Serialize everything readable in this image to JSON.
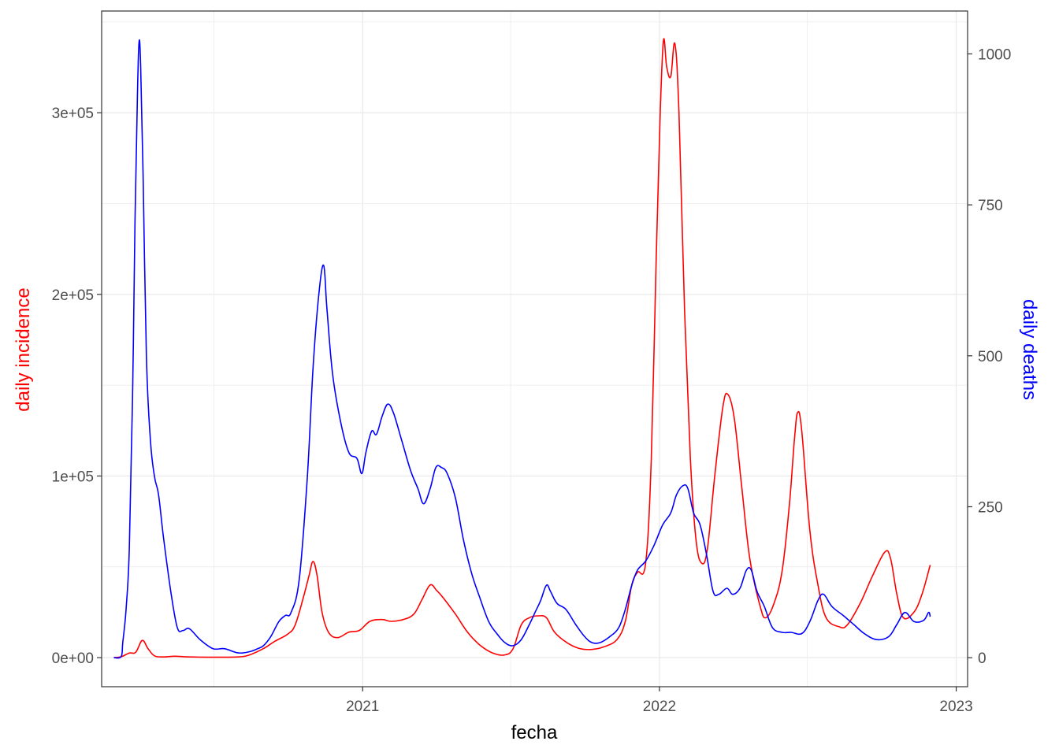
{
  "chart_data": {
    "type": "line",
    "title": "",
    "xlabel": "fecha",
    "ylabel_left": "daily incidence",
    "ylabel_right": "daily deaths",
    "grid": true,
    "x_ticks": [
      "2021",
      "2022",
      "2023"
    ],
    "x_range": [
      "2020-02-15",
      "2023-01-15"
    ],
    "y_left_ticks": [
      "0e+00",
      "1e+05",
      "2e+05",
      "3e+05"
    ],
    "y_left_range": [
      -16000,
      356000
    ],
    "y_right_ticks": [
      "0",
      "250",
      "500",
      "750",
      "1000"
    ],
    "y_right_range": [
      -48,
      1071
    ],
    "colors": {
      "incidence": "#ff0000",
      "deaths": "#0000ff",
      "grid": "#ebebeb",
      "panel_border": "#333333"
    },
    "series": [
      {
        "name": "daily incidence",
        "axis": "left",
        "color": "#ff0000",
        "points": [
          [
            "2020-03-01",
            0
          ],
          [
            "2020-03-10",
            500
          ],
          [
            "2020-03-20",
            2500
          ],
          [
            "2020-03-28",
            3000
          ],
          [
            "2020-04-05",
            9500
          ],
          [
            "2020-04-12",
            5000
          ],
          [
            "2020-04-20",
            1000
          ],
          [
            "2020-05-01",
            400
          ],
          [
            "2020-05-15",
            800
          ],
          [
            "2020-06-01",
            400
          ],
          [
            "2020-07-01",
            200
          ],
          [
            "2020-08-01",
            400
          ],
          [
            "2020-08-15",
            1500
          ],
          [
            "2020-09-01",
            5000
          ],
          [
            "2020-09-15",
            9000
          ],
          [
            "2020-10-01",
            13000
          ],
          [
            "2020-10-10",
            18000
          ],
          [
            "2020-10-20",
            33000
          ],
          [
            "2020-10-27",
            45000
          ],
          [
            "2020-11-01",
            53000
          ],
          [
            "2020-11-06",
            45000
          ],
          [
            "2020-11-12",
            25000
          ],
          [
            "2020-11-20",
            14000
          ],
          [
            "2020-12-01",
            11000
          ],
          [
            "2020-12-15",
            14000
          ],
          [
            "2020-12-28",
            15000
          ],
          [
            "2021-01-10",
            20000
          ],
          [
            "2021-01-25",
            21000
          ],
          [
            "2021-02-05",
            20000
          ],
          [
            "2021-02-20",
            21000
          ],
          [
            "2021-03-05",
            24000
          ],
          [
            "2021-03-15",
            32000
          ],
          [
            "2021-03-25",
            40000
          ],
          [
            "2021-04-02",
            37000
          ],
          [
            "2021-04-10",
            33000
          ],
          [
            "2021-04-25",
            24000
          ],
          [
            "2021-05-10",
            14000
          ],
          [
            "2021-05-25",
            7000
          ],
          [
            "2021-06-10",
            2500
          ],
          [
            "2021-06-25",
            1500
          ],
          [
            "2021-07-05",
            5000
          ],
          [
            "2021-07-15",
            18000
          ],
          [
            "2021-07-25",
            22000
          ],
          [
            "2021-08-05",
            23000
          ],
          [
            "2021-08-15",
            22000
          ],
          [
            "2021-08-25",
            14000
          ],
          [
            "2021-09-10",
            8000
          ],
          [
            "2021-09-25",
            5000
          ],
          [
            "2021-10-10",
            4500
          ],
          [
            "2021-10-25",
            6000
          ],
          [
            "2021-11-10",
            10000
          ],
          [
            "2021-11-20",
            20000
          ],
          [
            "2021-11-28",
            40000
          ],
          [
            "2021-12-05",
            47000
          ],
          [
            "2021-12-15",
            52000
          ],
          [
            "2021-12-22",
            110000
          ],
          [
            "2021-12-28",
            220000
          ],
          [
            "2022-01-02",
            300000
          ],
          [
            "2022-01-06",
            340000
          ],
          [
            "2022-01-10",
            325000
          ],
          [
            "2022-01-15",
            320000
          ],
          [
            "2022-01-20",
            338000
          ],
          [
            "2022-01-25",
            300000
          ],
          [
            "2022-02-01",
            190000
          ],
          [
            "2022-02-08",
            110000
          ],
          [
            "2022-02-15",
            65000
          ],
          [
            "2022-02-22",
            52000
          ],
          [
            "2022-03-01",
            60000
          ],
          [
            "2022-03-10",
            100000
          ],
          [
            "2022-03-20",
            138000
          ],
          [
            "2022-03-26",
            145000
          ],
          [
            "2022-04-03",
            132000
          ],
          [
            "2022-04-12",
            95000
          ],
          [
            "2022-04-22",
            55000
          ],
          [
            "2022-05-05",
            28000
          ],
          [
            "2022-05-12",
            22000
          ],
          [
            "2022-05-22",
            30000
          ],
          [
            "2022-06-01",
            48000
          ],
          [
            "2022-06-10",
            85000
          ],
          [
            "2022-06-16",
            120000
          ],
          [
            "2022-06-20",
            135000
          ],
          [
            "2022-06-25",
            125000
          ],
          [
            "2022-07-05",
            70000
          ],
          [
            "2022-07-15",
            40000
          ],
          [
            "2022-07-25",
            22000
          ],
          [
            "2022-08-10",
            17000
          ],
          [
            "2022-08-20",
            18000
          ],
          [
            "2022-09-05",
            30000
          ],
          [
            "2022-09-20",
            45000
          ],
          [
            "2022-10-05",
            58000
          ],
          [
            "2022-10-12",
            55000
          ],
          [
            "2022-10-20",
            35000
          ],
          [
            "2022-10-28",
            22000
          ],
          [
            "2022-11-10",
            25000
          ],
          [
            "2022-11-20",
            35000
          ],
          [
            "2022-11-30",
            51000
          ]
        ]
      },
      {
        "name": "daily deaths",
        "axis": "right",
        "color": "#0000ff",
        "points": [
          [
            "2020-03-01",
            0
          ],
          [
            "2020-03-10",
            2
          ],
          [
            "2020-03-12",
            25
          ],
          [
            "2020-03-16",
            80
          ],
          [
            "2020-03-20",
            180
          ],
          [
            "2020-03-24",
            430
          ],
          [
            "2020-03-27",
            720
          ],
          [
            "2020-03-30",
            930
          ],
          [
            "2020-04-01",
            1020
          ],
          [
            "2020-04-03",
            980
          ],
          [
            "2020-04-06",
            800
          ],
          [
            "2020-04-10",
            500
          ],
          [
            "2020-04-15",
            360
          ],
          [
            "2020-04-20",
            300
          ],
          [
            "2020-04-25",
            270
          ],
          [
            "2020-05-01",
            200
          ],
          [
            "2020-05-10",
            110
          ],
          [
            "2020-05-18",
            50
          ],
          [
            "2020-05-25",
            45
          ],
          [
            "2020-06-02",
            48
          ],
          [
            "2020-06-15",
            30
          ],
          [
            "2020-07-01",
            15
          ],
          [
            "2020-07-15",
            15
          ],
          [
            "2020-08-01",
            8
          ],
          [
            "2020-08-15",
            10
          ],
          [
            "2020-08-25",
            15
          ],
          [
            "2020-09-01",
            20
          ],
          [
            "2020-09-10",
            35
          ],
          [
            "2020-09-20",
            60
          ],
          [
            "2020-09-28",
            70
          ],
          [
            "2020-10-05",
            75
          ],
          [
            "2020-10-15",
            130
          ],
          [
            "2020-10-25",
            300
          ],
          [
            "2020-11-01",
            480
          ],
          [
            "2020-11-08",
            600
          ],
          [
            "2020-11-14",
            650
          ],
          [
            "2020-11-18",
            580
          ],
          [
            "2020-11-25",
            470
          ],
          [
            "2020-12-05",
            390
          ],
          [
            "2020-12-15",
            340
          ],
          [
            "2020-12-25",
            330
          ],
          [
            "2020-12-31",
            305
          ],
          [
            "2021-01-05",
            340
          ],
          [
            "2021-01-12",
            375
          ],
          [
            "2021-01-18",
            370
          ],
          [
            "2021-01-25",
            400
          ],
          [
            "2021-02-01",
            420
          ],
          [
            "2021-02-08",
            405
          ],
          [
            "2021-02-18",
            360
          ],
          [
            "2021-03-01",
            310
          ],
          [
            "2021-03-10",
            280
          ],
          [
            "2021-03-17",
            255
          ],
          [
            "2021-03-25",
            280
          ],
          [
            "2021-04-01",
            315
          ],
          [
            "2021-04-08",
            315
          ],
          [
            "2021-04-15",
            305
          ],
          [
            "2021-04-25",
            265
          ],
          [
            "2021-05-05",
            195
          ],
          [
            "2021-05-15",
            140
          ],
          [
            "2021-05-25",
            100
          ],
          [
            "2021-06-05",
            60
          ],
          [
            "2021-06-15",
            40
          ],
          [
            "2021-06-25",
            25
          ],
          [
            "2021-07-05",
            20
          ],
          [
            "2021-07-15",
            30
          ],
          [
            "2021-07-25",
            55
          ],
          [
            "2021-08-01",
            75
          ],
          [
            "2021-08-08",
            95
          ],
          [
            "2021-08-15",
            120
          ],
          [
            "2021-08-20",
            110
          ],
          [
            "2021-08-28",
            90
          ],
          [
            "2021-09-08",
            80
          ],
          [
            "2021-09-20",
            55
          ],
          [
            "2021-10-01",
            35
          ],
          [
            "2021-10-10",
            25
          ],
          [
            "2021-10-20",
            25
          ],
          [
            "2021-11-01",
            35
          ],
          [
            "2021-11-12",
            50
          ],
          [
            "2021-11-20",
            80
          ],
          [
            "2021-11-28",
            120
          ],
          [
            "2021-12-05",
            145
          ],
          [
            "2021-12-15",
            160
          ],
          [
            "2021-12-25",
            185
          ],
          [
            "2022-01-05",
            220
          ],
          [
            "2022-01-15",
            240
          ],
          [
            "2022-01-22",
            270
          ],
          [
            "2022-01-30",
            285
          ],
          [
            "2022-02-05",
            280
          ],
          [
            "2022-02-12",
            240
          ],
          [
            "2022-02-20",
            220
          ],
          [
            "2022-02-28",
            170
          ],
          [
            "2022-03-08",
            110
          ],
          [
            "2022-03-15",
            105
          ],
          [
            "2022-03-25",
            115
          ],
          [
            "2022-04-01",
            105
          ],
          [
            "2022-04-10",
            115
          ],
          [
            "2022-04-18",
            145
          ],
          [
            "2022-04-24",
            145
          ],
          [
            "2022-05-01",
            110
          ],
          [
            "2022-05-10",
            85
          ],
          [
            "2022-05-20",
            50
          ],
          [
            "2022-06-01",
            42
          ],
          [
            "2022-06-12",
            42
          ],
          [
            "2022-06-25",
            40
          ],
          [
            "2022-07-05",
            60
          ],
          [
            "2022-07-15",
            95
          ],
          [
            "2022-07-22",
            105
          ],
          [
            "2022-08-01",
            85
          ],
          [
            "2022-08-15",
            70
          ],
          [
            "2022-08-28",
            55
          ],
          [
            "2022-09-10",
            40
          ],
          [
            "2022-09-25",
            30
          ],
          [
            "2022-10-10",
            35
          ],
          [
            "2022-10-20",
            55
          ],
          [
            "2022-10-30",
            75
          ],
          [
            "2022-11-10",
            60
          ],
          [
            "2022-11-22",
            62
          ],
          [
            "2022-11-28",
            75
          ],
          [
            "2022-11-30",
            68
          ]
        ]
      }
    ]
  }
}
